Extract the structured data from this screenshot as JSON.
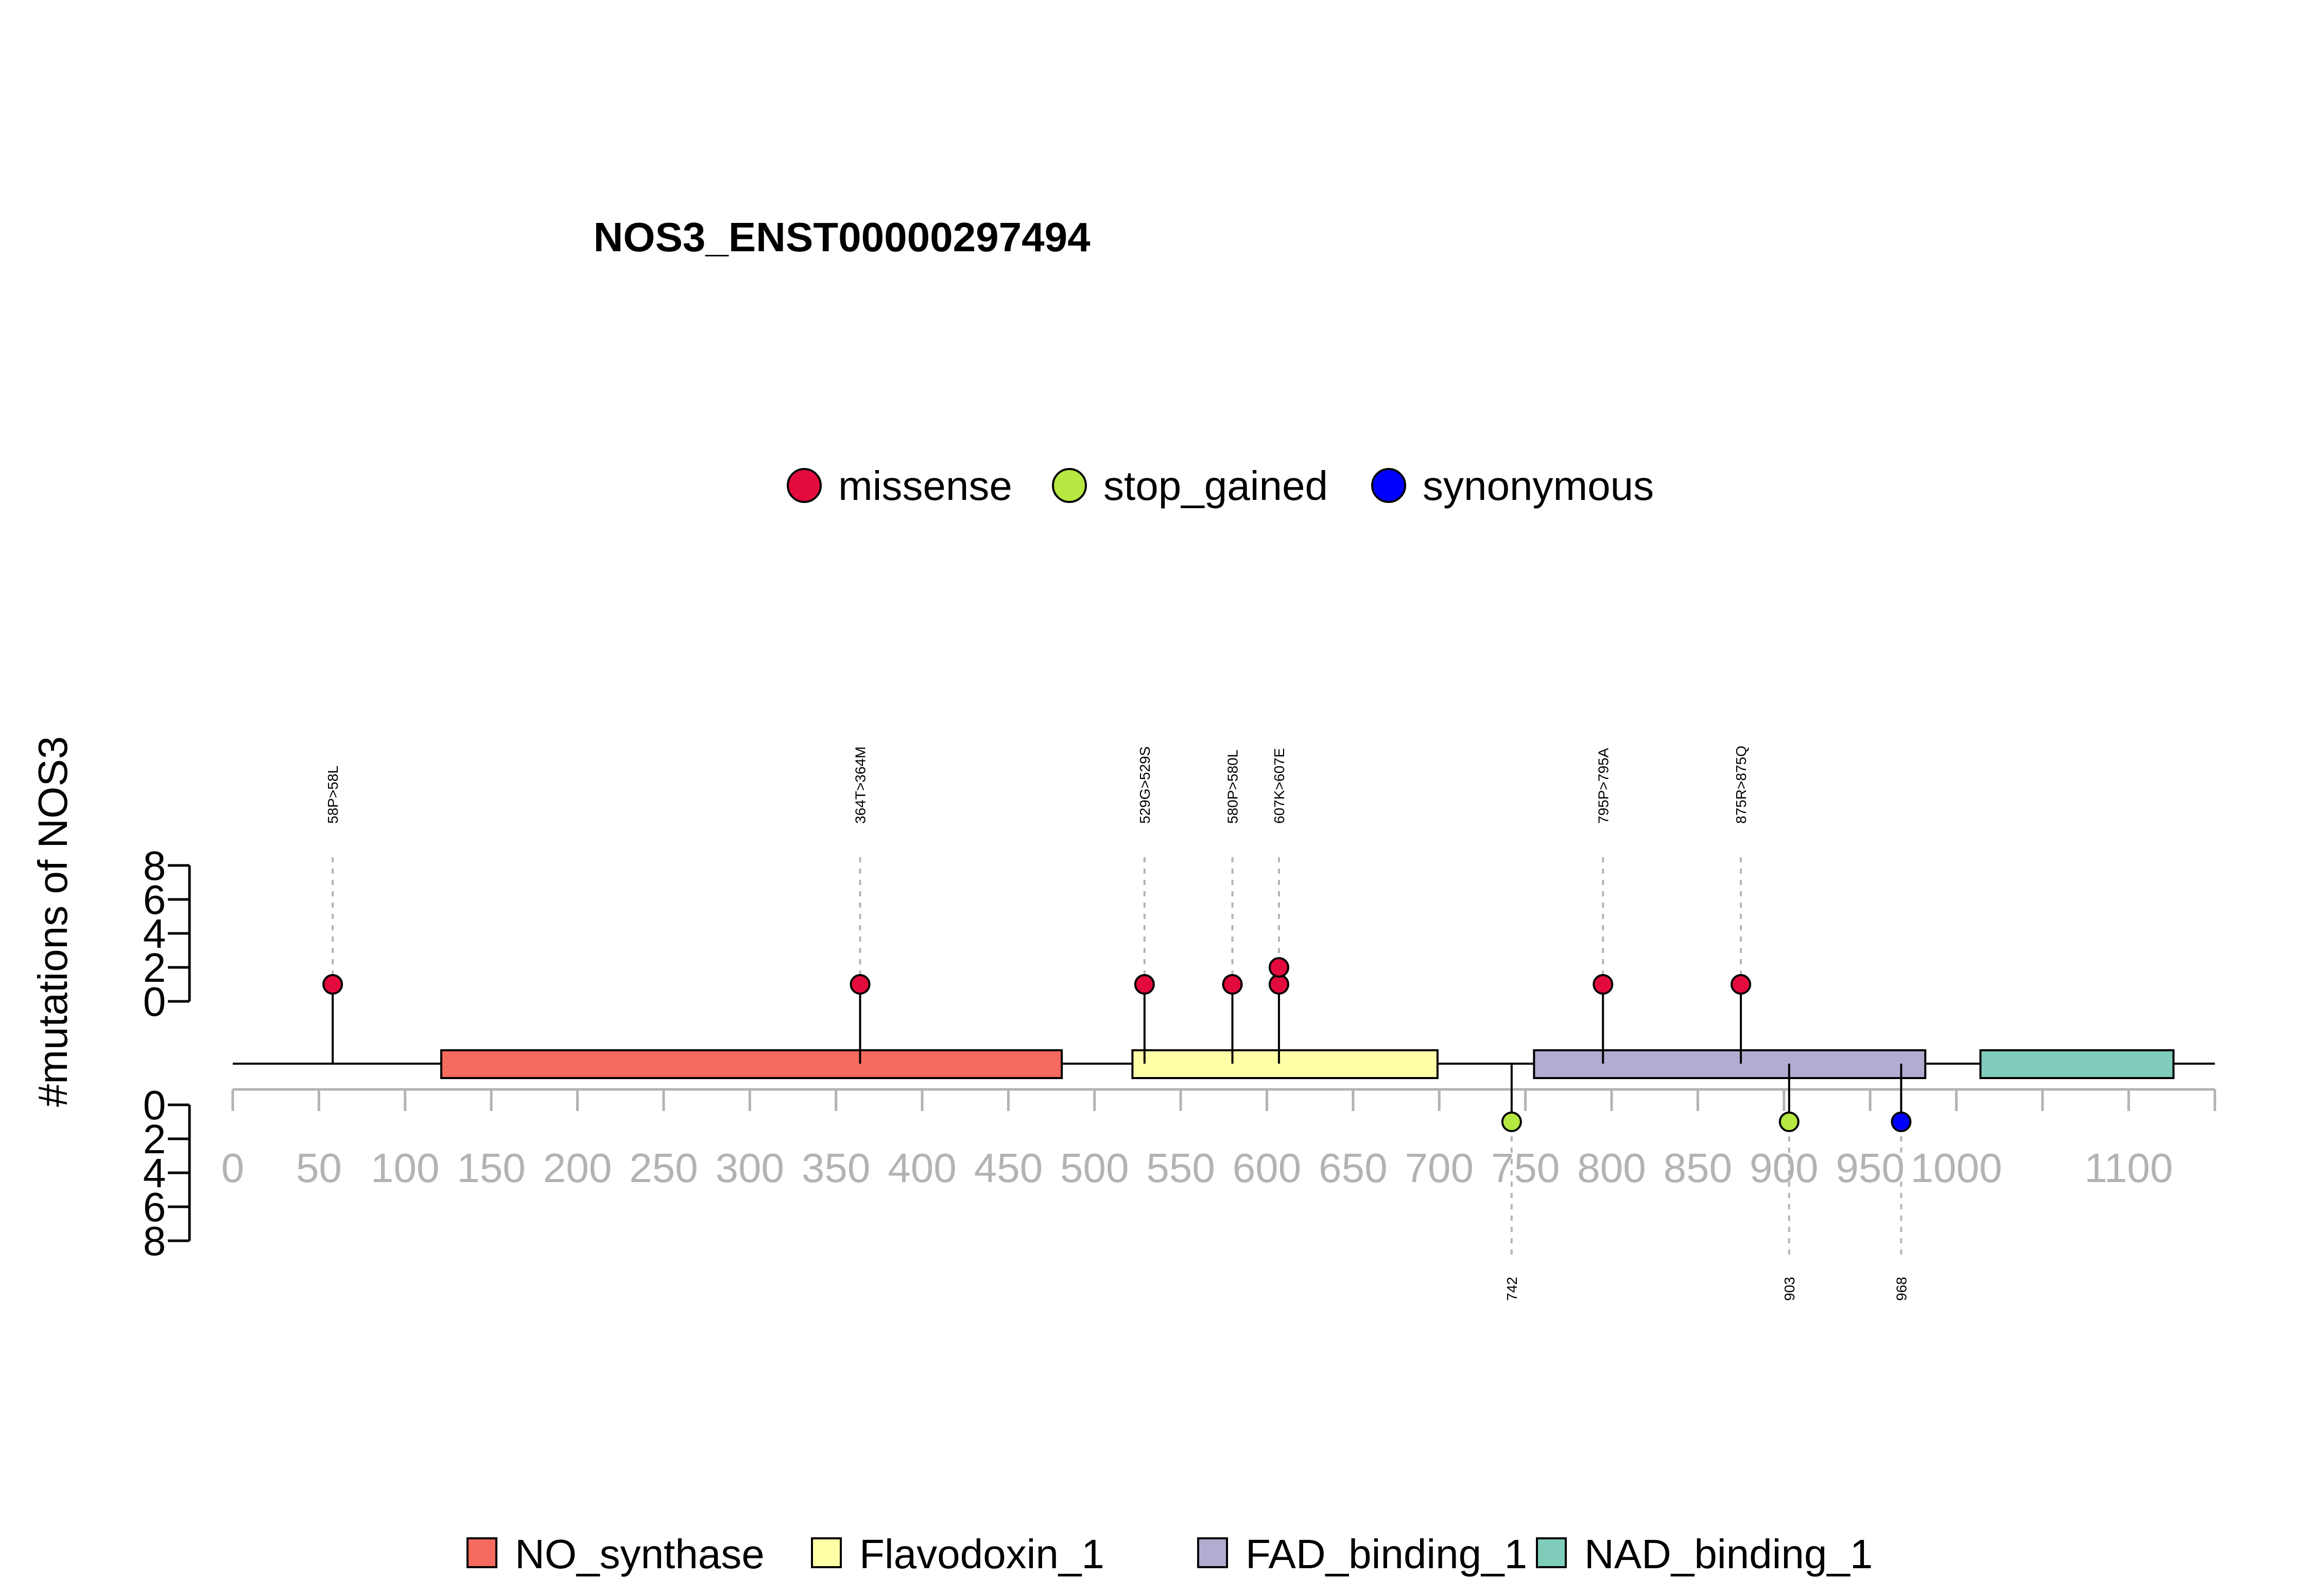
{
  "chart_data": {
    "type": "lollipop",
    "title": "NOS3_ENST00000297494",
    "ylabel": "#mutations of NOS3",
    "x_ticks": [
      0,
      50,
      100,
      150,
      200,
      250,
      300,
      350,
      400,
      450,
      500,
      550,
      600,
      650,
      700,
      750,
      800,
      850,
      900,
      950,
      1000,
      1100
    ],
    "x_minor_ticks": [
      1050
    ],
    "xlim": [
      0,
      1150
    ],
    "y_ticks_top": [
      0,
      2,
      4,
      6,
      8
    ],
    "y_ticks_bottom": [
      0,
      2,
      4,
      6,
      8
    ],
    "ylim": [
      0,
      8
    ],
    "mutation_types": [
      {
        "name": "missense",
        "color": "#e30b3d"
      },
      {
        "name": "stop_gained",
        "color": "#b5e840"
      },
      {
        "name": "synonymous",
        "color": "#0000ff"
      }
    ],
    "domains": [
      {
        "name": "NO_synthase",
        "start": 121,
        "end": 481,
        "color": "#f56b5e"
      },
      {
        "name": "Flavodoxin_1",
        "start": 522,
        "end": 699,
        "color": "#ffffa8"
      },
      {
        "name": "FAD_binding_1",
        "start": 755,
        "end": 982,
        "color": "#b3acd1"
      },
      {
        "name": "NAD_binding_1",
        "start": 1014,
        "end": 1126,
        "color": "#7fccba"
      }
    ],
    "mutations_top": [
      {
        "position": 58,
        "label": "58P>58L",
        "type": "missense",
        "count": 1
      },
      {
        "position": 364,
        "label": "364T>364M",
        "type": "missense",
        "count": 1
      },
      {
        "position": 529,
        "label": "529G>529S",
        "type": "missense",
        "count": 1
      },
      {
        "position": 580,
        "label": "580P>580L",
        "type": "missense",
        "count": 1
      },
      {
        "position": 607,
        "label": "607K>607E",
        "type": "missense",
        "count": 2
      },
      {
        "position": 795,
        "label": "795P>795A",
        "type": "missense",
        "count": 1
      },
      {
        "position": 875,
        "label": "875R>875Q",
        "type": "missense",
        "count": 1
      }
    ],
    "mutations_bottom": [
      {
        "position": 742,
        "label": "742",
        "type": "stop_gained",
        "count": 1
      },
      {
        "position": 903,
        "label": "903",
        "type": "stop_gained",
        "count": 1
      },
      {
        "position": 968,
        "label": "968",
        "type": "synonymous",
        "count": 1
      }
    ]
  }
}
